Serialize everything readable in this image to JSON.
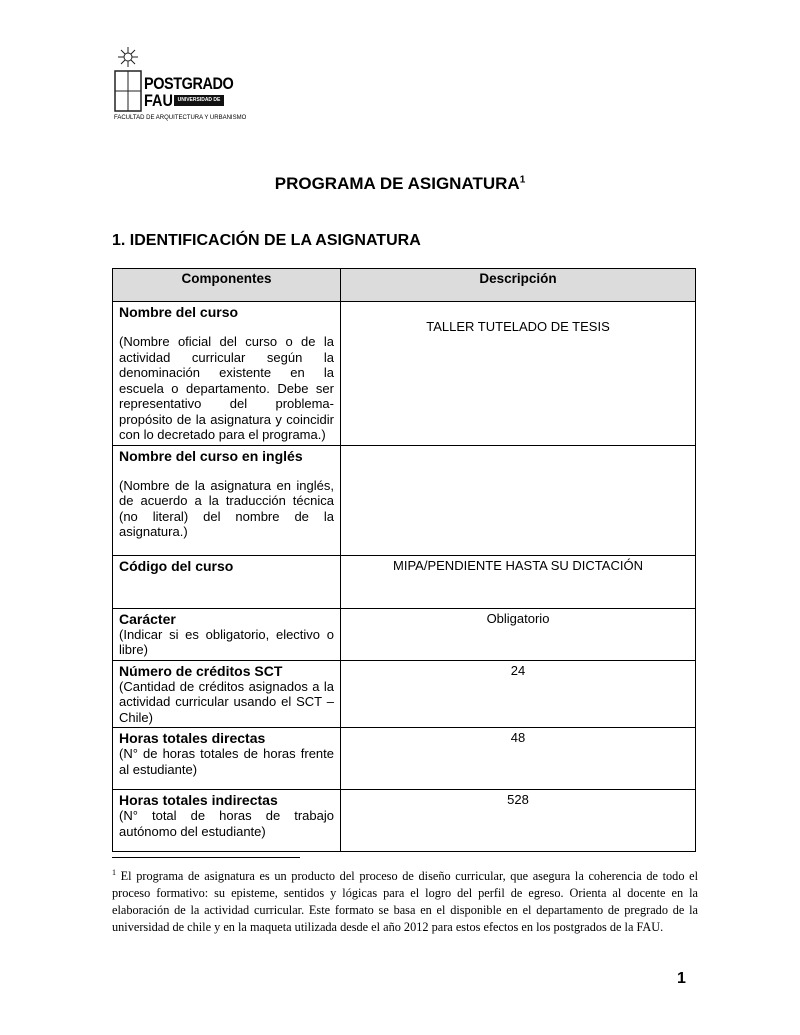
{
  "logo": {
    "line1": "POSTGRADO",
    "line2": "FAU",
    "band": "UNIVERSIDAD DE CHILE",
    "sub": "FACULTAD DE ARQUITECTURA Y URBANISMO"
  },
  "title": "PROGRAMA DE ASIGNATURA",
  "title_footnote_mark": "1",
  "section": "1. IDENTIFICACIÓN DE LA ASIGNATURA",
  "table": {
    "headers": [
      "Componentes",
      "Descripción"
    ],
    "rows": [
      {
        "label": "Nombre del curso",
        "desc": "(Nombre oficial del curso o de la actividad curricular según la denominación existente en la escuela o departamento. Debe ser representativo del problema-propósito de la asignatura y coincidir con lo decretado para el programa.)",
        "value": "TALLER TUTELADO DE TESIS"
      },
      {
        "label": "Nombre del curso en inglés",
        "desc": "(Nombre de la asignatura en inglés, de acuerdo a la traducción técnica (no literal) del nombre de la asignatura.)",
        "value": ""
      },
      {
        "label": "Código del curso",
        "desc": "",
        "value": "MIPA/PENDIENTE HASTA SU DICTACIÓN"
      },
      {
        "label": "Carácter",
        "desc": "(Indicar si es obligatorio, electivo o libre)",
        "value": "Obligatorio"
      },
      {
        "label": "Número de créditos SCT",
        "desc": "(Cantidad de créditos asignados a la actividad curricular usando el SCT – Chile)",
        "value": "24"
      },
      {
        "label": "Horas totales directas",
        "desc": "(N° de horas totales de horas frente al estudiante)",
        "value": "48"
      },
      {
        "label": "Horas totales indirectas",
        "desc": "(N° total de horas de trabajo autónomo del estudiante)",
        "value": "528"
      }
    ]
  },
  "footnote": {
    "mark": "1",
    "text": "El programa de asignatura es un producto del proceso de diseño curricular, que asegura la coherencia de todo el proceso formativo: su episteme, sentidos y lógicas para el logro del perfil de egreso. Orienta al docente en la elaboración de la actividad curricular. Este formato se basa en el disponible en el departamento de pregrado de la universidad de chile y en la maqueta utilizada desde el año 2012 para estos efectos en los postgrados de la FAU."
  },
  "page_number": "1"
}
